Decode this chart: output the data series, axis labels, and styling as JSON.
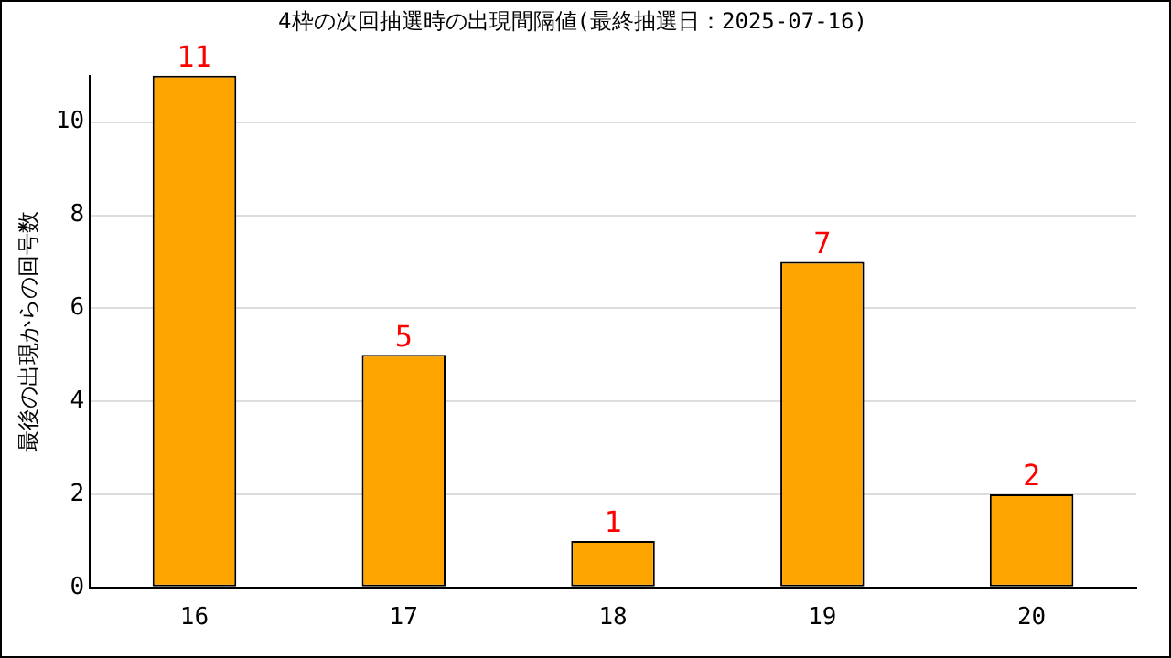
{
  "chart_data": {
    "type": "bar",
    "title": "4枠の次回抽選時の出現間隔値(最終抽選日：2025-07-16)",
    "ylabel": "最後の出現からの回号数",
    "categories": [
      "16",
      "17",
      "18",
      "19",
      "20"
    ],
    "values": [
      11,
      5,
      1,
      7,
      2
    ],
    "color": "#ffa500",
    "ylim": [
      0,
      11
    ],
    "yticks": [
      0,
      2,
      4,
      6,
      8,
      10
    ],
    "grid": "y",
    "data_labels": true,
    "legend": false
  }
}
